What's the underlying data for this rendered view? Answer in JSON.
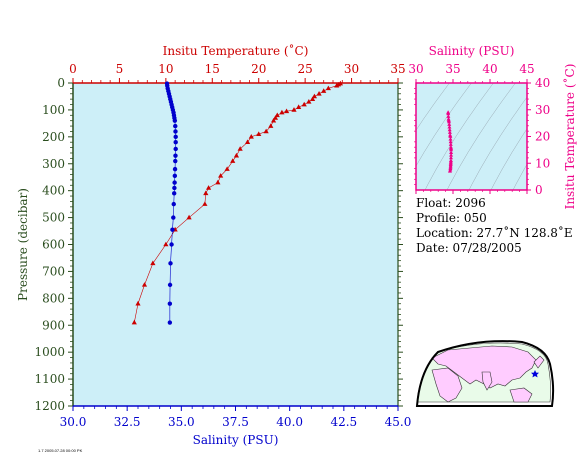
{
  "info": {
    "float": "Float:  2096",
    "profile": "Profile:  050",
    "location": "Location:  27.7˚N  128.8˚E",
    "date": "Date:  07/28/2005"
  },
  "footer_text": "1.7 2005.07.28 00:00 PK",
  "colors": {
    "temperature": "#cc0000",
    "salinity": "#0000cc",
    "ts": "#ee0088",
    "plot_bg": "#cdeff8",
    "pressure_axis": "#2a4d1e",
    "map_land": "#ffccff",
    "map_sea": "#e9fbe9"
  },
  "chart_data": [
    {
      "type": "scatter",
      "pressure_axis": {
        "label": "Pressure (decibar)",
        "range": [
          0,
          1200
        ],
        "inverted": true,
        "ticks": [
          0,
          100,
          200,
          300,
          400,
          500,
          600,
          700,
          800,
          900,
          1000,
          1100,
          1200
        ]
      },
      "temperature_axis": {
        "label": "Insitu Temperature (˚C)",
        "range": [
          0,
          35
        ],
        "ticks": [
          0,
          5,
          10,
          15,
          20,
          25,
          30,
          35
        ]
      },
      "salinity_axis": {
        "label": "Salinity (PSU)",
        "range": [
          30,
          45
        ],
        "ticks": [
          "30.0",
          "32.5",
          "35.0",
          "37.5",
          "40.0",
          "42.5",
          "45.0"
        ]
      },
      "series": [
        {
          "marker": "triangle",
          "axis": "temperature",
          "points": [
            [
              28.8,
              2
            ],
            [
              28.6,
              6
            ],
            [
              28.4,
              10
            ],
            [
              27.5,
              20
            ],
            [
              27.0,
              30
            ],
            [
              26.5,
              40
            ],
            [
              26.0,
              50
            ],
            [
              25.8,
              60
            ],
            [
              25.4,
              70
            ],
            [
              24.9,
              80
            ],
            [
              24.3,
              90
            ],
            [
              23.8,
              100
            ],
            [
              23.0,
              105
            ],
            [
              22.5,
              110
            ],
            [
              22.0,
              120
            ],
            [
              21.8,
              130
            ],
            [
              21.6,
              140
            ],
            [
              21.3,
              160
            ],
            [
              20.8,
              180
            ],
            [
              20.0,
              190
            ],
            [
              19.2,
              200
            ],
            [
              18.8,
              220
            ],
            [
              18.0,
              245
            ],
            [
              17.6,
              270
            ],
            [
              17.2,
              290
            ],
            [
              16.6,
              320
            ],
            [
              15.9,
              345
            ],
            [
              15.6,
              370
            ],
            [
              14.6,
              390
            ],
            [
              14.3,
              410
            ],
            [
              14.2,
              450
            ],
            [
              12.5,
              500
            ],
            [
              11.0,
              545
            ],
            [
              10.0,
              600
            ],
            [
              8.6,
              670
            ],
            [
              7.7,
              750
            ],
            [
              7.0,
              820
            ],
            [
              6.6,
              890
            ]
          ]
        },
        {
          "marker": "circle",
          "axis": "salinity",
          "points": [
            [
              34.34,
              2
            ],
            [
              34.35,
              10
            ],
            [
              34.37,
              20
            ],
            [
              34.4,
              30
            ],
            [
              34.43,
              40
            ],
            [
              34.46,
              50
            ],
            [
              34.49,
              60
            ],
            [
              34.52,
              70
            ],
            [
              34.55,
              80
            ],
            [
              34.58,
              90
            ],
            [
              34.61,
              100
            ],
            [
              34.64,
              110
            ],
            [
              34.66,
              120
            ],
            [
              34.68,
              130
            ],
            [
              34.7,
              140
            ],
            [
              34.72,
              160
            ],
            [
              34.73,
              180
            ],
            [
              34.74,
              200
            ],
            [
              34.74,
              220
            ],
            [
              34.74,
              245
            ],
            [
              34.73,
              270
            ],
            [
              34.72,
              290
            ],
            [
              34.71,
              320
            ],
            [
              34.7,
              345
            ],
            [
              34.69,
              370
            ],
            [
              34.68,
              390
            ],
            [
              34.67,
              410
            ],
            [
              34.65,
              450
            ],
            [
              34.63,
              500
            ],
            [
              34.59,
              545
            ],
            [
              34.55,
              600
            ],
            [
              34.5,
              670
            ],
            [
              34.48,
              750
            ],
            [
              34.47,
              820
            ],
            [
              34.47,
              890
            ]
          ]
        }
      ]
    },
    {
      "type": "scatter",
      "xlabel": "Salinity (PSU)",
      "ylabel": "Insitu Temperature (˚C)",
      "xlim": [
        30,
        45
      ],
      "ylim": [
        0,
        40
      ],
      "xticks": [
        30,
        35,
        40,
        45
      ],
      "yticks": [
        0,
        10,
        20,
        30,
        40
      ],
      "points": [
        [
          34.34,
          29
        ],
        [
          34.35,
          28.5
        ],
        [
          34.37,
          27.5
        ],
        [
          34.4,
          26.5
        ],
        [
          34.43,
          26
        ],
        [
          34.46,
          25.5
        ],
        [
          34.49,
          24.5
        ],
        [
          34.52,
          23.5
        ],
        [
          34.55,
          22.5
        ],
        [
          34.58,
          21.5
        ],
        [
          34.61,
          20.5
        ],
        [
          34.64,
          20
        ],
        [
          34.66,
          19
        ],
        [
          34.68,
          18
        ],
        [
          34.7,
          17
        ],
        [
          34.72,
          16
        ],
        [
          34.73,
          15.5
        ],
        [
          34.74,
          15
        ],
        [
          34.74,
          14
        ],
        [
          34.74,
          13
        ],
        [
          34.73,
          12
        ],
        [
          34.72,
          11
        ],
        [
          34.71,
          10.5
        ],
        [
          34.7,
          10
        ],
        [
          34.69,
          9.5
        ],
        [
          34.68,
          9
        ],
        [
          34.67,
          8.5
        ],
        [
          34.65,
          8
        ],
        [
          34.63,
          7.5
        ],
        [
          34.59,
          7
        ]
      ]
    }
  ]
}
